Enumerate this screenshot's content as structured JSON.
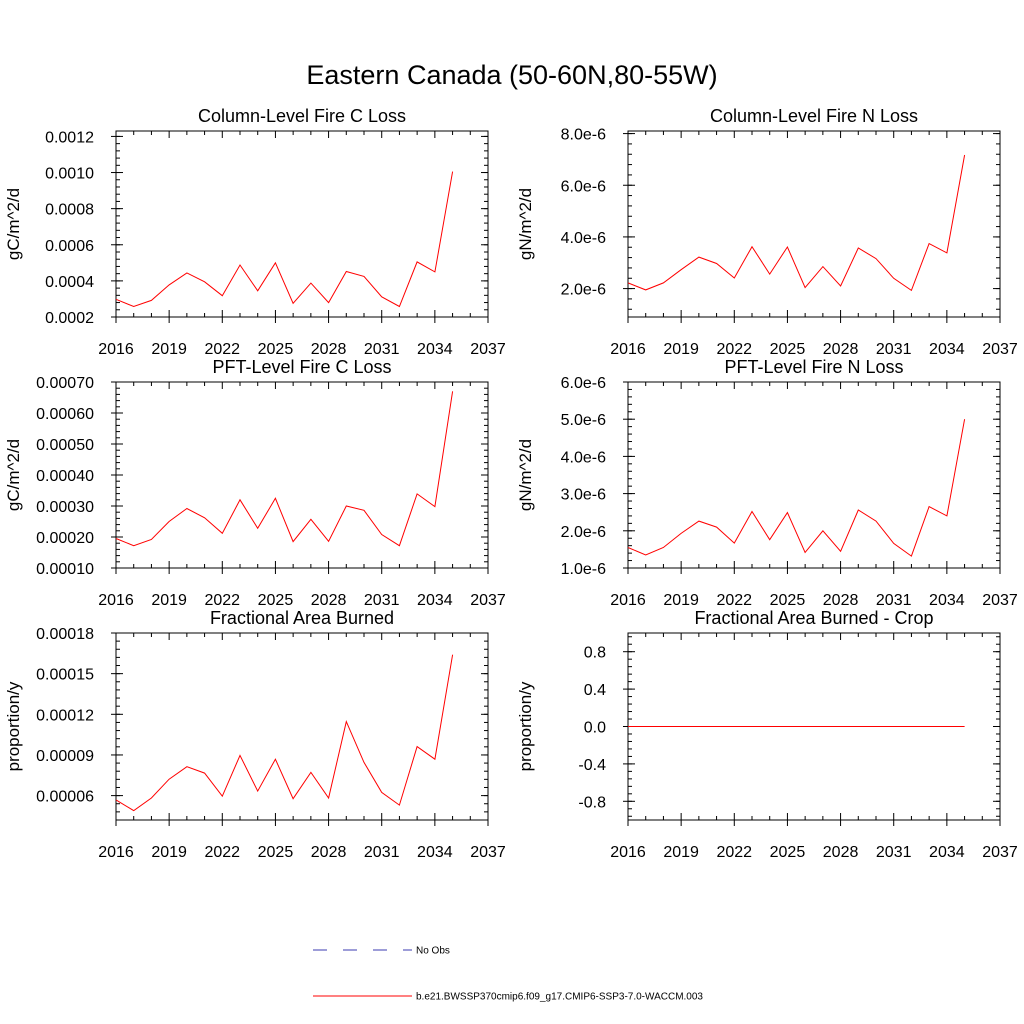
{
  "figure": {
    "title": "Eastern Canada (50-60N,80-55W)",
    "line_color": "#ff0000",
    "obs_color": "#3b3bb0",
    "legend": [
      {
        "label": "No Obs",
        "style": "dashed",
        "color": "#3b3bb0"
      },
      {
        "label": "b.e21.BWSSP370cmip6.f09_g17.CMIP6-SSP3-7.0-WACCM.003",
        "style": "solid",
        "color": "#ff0000"
      }
    ]
  },
  "chart_data": [
    {
      "type": "line",
      "title": "Column-Level Fire C Loss",
      "ylabel": "gC/m^2/d",
      "xlim": [
        2016,
        2037
      ],
      "ylim": [
        0.0002,
        0.00123
      ],
      "xticks": [
        "2016",
        "2019",
        "2022",
        "2025",
        "2028",
        "2031",
        "2034",
        "2037"
      ],
      "yticks": [
        "0.0002",
        "0.0004",
        "0.0006",
        "0.0008",
        "0.0010",
        "0.0012"
      ],
      "x": [
        2016,
        2017,
        2018,
        2019,
        2020,
        2021,
        2022,
        2023,
        2024,
        2025,
        2026,
        2027,
        2028,
        2029,
        2030,
        2031,
        2032,
        2033,
        2034,
        2035
      ],
      "y": [
        0.000298,
        0.000258,
        0.000292,
        0.000378,
        0.000444,
        0.000395,
        0.000318,
        0.000488,
        0.000345,
        0.0005,
        0.000276,
        0.000388,
        0.00028,
        0.000452,
        0.000425,
        0.000312,
        0.000258,
        0.000505,
        0.00045,
        0.001005
      ]
    },
    {
      "type": "line",
      "title": "Column-Level Fire N Loss",
      "ylabel": "gN/m^2/d",
      "xlim": [
        2016,
        2037
      ],
      "ylim": [
        9e-07,
        8.1e-06
      ],
      "xticks": [
        "2016",
        "2019",
        "2022",
        "2025",
        "2028",
        "2031",
        "2034",
        "2037"
      ],
      "yticks": [
        "2.0e-6",
        "4.0e-6",
        "6.0e-6",
        "8.0e-6"
      ],
      "x": [
        2016,
        2017,
        2018,
        2019,
        2020,
        2021,
        2022,
        2023,
        2024,
        2025,
        2026,
        2027,
        2028,
        2029,
        2030,
        2031,
        2032,
        2033,
        2034,
        2035
      ],
      "y": [
        2.22e-06,
        1.95e-06,
        2.22e-06,
        2.73e-06,
        3.22e-06,
        2.97e-06,
        2.41e-06,
        3.62e-06,
        2.56e-06,
        3.61e-06,
        2.04e-06,
        2.85e-06,
        2.1e-06,
        3.57e-06,
        3.16e-06,
        2.4e-06,
        1.93e-06,
        3.74e-06,
        3.38e-06,
        7.17e-06
      ]
    },
    {
      "type": "line",
      "title": "PFT-Level Fire C Loss",
      "ylabel": "gC/m^2/d",
      "xlim": [
        2016,
        2037
      ],
      "ylim": [
        0.0001,
        0.0007
      ],
      "xticks": [
        "2016",
        "2019",
        "2022",
        "2025",
        "2028",
        "2031",
        "2034",
        "2037"
      ],
      "yticks": [
        "0.00010",
        "0.00020",
        "0.00030",
        "0.00040",
        "0.00050",
        "0.00060",
        "0.00070"
      ],
      "x": [
        2016,
        2017,
        2018,
        2019,
        2020,
        2021,
        2022,
        2023,
        2024,
        2025,
        2026,
        2027,
        2028,
        2029,
        2030,
        2031,
        2032,
        2033,
        2034,
        2035
      ],
      "y": [
        0.000195,
        0.000172,
        0.000192,
        0.00025,
        0.000292,
        0.000262,
        0.000212,
        0.00032,
        0.000228,
        0.000325,
        0.000185,
        0.000257,
        0.000186,
        0.0003,
        0.000286,
        0.000208,
        0.000172,
        0.000339,
        0.000298,
        0.00067
      ]
    },
    {
      "type": "line",
      "title": "PFT-Level Fire N Loss",
      "ylabel": "gN/m^2/d",
      "xlim": [
        2016,
        2037
      ],
      "ylim": [
        1e-06,
        6e-06
      ],
      "xticks": [
        "2016",
        "2019",
        "2022",
        "2025",
        "2028",
        "2031",
        "2034",
        "2037"
      ],
      "yticks": [
        "1.0e-6",
        "2.0e-6",
        "3.0e-6",
        "4.0e-6",
        "5.0e-6",
        "6.0e-6"
      ],
      "x": [
        2016,
        2017,
        2018,
        2019,
        2020,
        2021,
        2022,
        2023,
        2024,
        2025,
        2026,
        2027,
        2028,
        2029,
        2030,
        2031,
        2032,
        2033,
        2034,
        2035
      ],
      "y": [
        1.55e-06,
        1.35e-06,
        1.55e-06,
        1.93e-06,
        2.26e-06,
        2.1e-06,
        1.67e-06,
        2.52e-06,
        1.76e-06,
        2.49e-06,
        1.42e-06,
        2e-06,
        1.45e-06,
        2.56e-06,
        2.26e-06,
        1.66e-06,
        1.32e-06,
        2.65e-06,
        2.4e-06,
        5e-06
      ]
    },
    {
      "type": "line",
      "title": "Fractional Area Burned",
      "ylabel": "proportion/y",
      "xlim": [
        2016,
        2037
      ],
      "ylim": [
        4.2e-05,
        0.00018
      ],
      "xticks": [
        "2016",
        "2019",
        "2022",
        "2025",
        "2028",
        "2031",
        "2034",
        "2037"
      ],
      "yticks": [
        "0.00006",
        "0.00009",
        "0.00012",
        "0.00015",
        "0.00018"
      ],
      "x": [
        2016,
        2017,
        2018,
        2019,
        2020,
        2021,
        2022,
        2023,
        2024,
        2025,
        2026,
        2027,
        2028,
        2029,
        2030,
        2031,
        2032,
        2033,
        2034,
        2035
      ],
      "y": [
        5.68e-05,
        4.89e-05,
        5.82e-05,
        7.21e-05,
        8.13e-05,
        7.66e-05,
        5.96e-05,
        8.97e-05,
        6.33e-05,
        8.69e-05,
        5.77e-05,
        7.71e-05,
        5.82e-05,
        0.0001146,
        8.45e-05,
        6.24e-05,
        5.3e-05,
        9.62e-05,
        8.69e-05,
        0.000164
      ]
    },
    {
      "type": "line",
      "title": "Fractional Area Burned - Crop",
      "ylabel": "proportion/y",
      "xlim": [
        2016,
        2037
      ],
      "ylim": [
        -1.0,
        1.0
      ],
      "xticks": [
        "2016",
        "2019",
        "2022",
        "2025",
        "2028",
        "2031",
        "2034",
        "2037"
      ],
      "yticks": [
        "-0.8",
        "-0.4",
        "0.0",
        "0.4",
        "0.8"
      ],
      "x": [
        2016,
        2017,
        2018,
        2019,
        2020,
        2021,
        2022,
        2023,
        2024,
        2025,
        2026,
        2027,
        2028,
        2029,
        2030,
        2031,
        2032,
        2033,
        2034,
        2035
      ],
      "y": [
        0,
        0,
        0,
        0,
        0,
        0,
        0,
        0,
        0,
        0,
        0,
        0,
        0,
        0,
        0,
        0,
        0,
        0,
        0,
        0
      ]
    }
  ]
}
